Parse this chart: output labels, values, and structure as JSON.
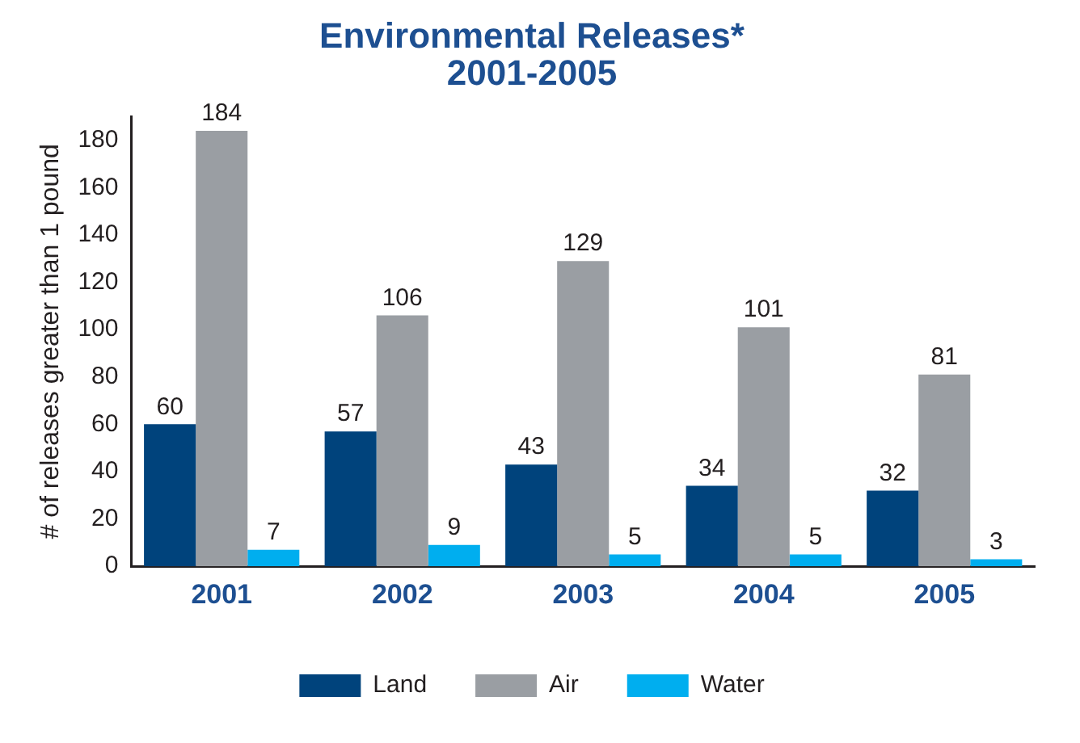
{
  "chart_data": {
    "type": "bar",
    "title": "Environmental Releases*\n2001-2005",
    "ylabel": "# of releases greater than 1 pound",
    "categories": [
      "2001",
      "2002",
      "2003",
      "2004",
      "2005"
    ],
    "series": [
      {
        "name": "Land",
        "color": "#00437c",
        "values": [
          60,
          57,
          43,
          34,
          32
        ]
      },
      {
        "name": "Air",
        "color": "#9a9ea3",
        "values": [
          184,
          106,
          129,
          101,
          81
        ]
      },
      {
        "name": "Water",
        "color": "#00aeef",
        "values": [
          7,
          9,
          5,
          5,
          3
        ]
      }
    ],
    "ylim": [
      0,
      190
    ],
    "yticks": [
      0,
      20,
      40,
      60,
      80,
      100,
      120,
      140,
      160,
      180
    ],
    "grid": false,
    "legend": "bottom",
    "data_labels": true
  }
}
